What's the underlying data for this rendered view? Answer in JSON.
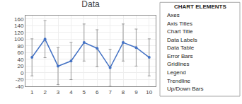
{
  "chart_data": {
    "type": "line",
    "title": "Data",
    "x": [
      1,
      2,
      3,
      4,
      5,
      6,
      7,
      8,
      9,
      10
    ],
    "values": [
      46,
      100,
      20,
      35,
      90,
      73,
      15,
      90,
      75,
      46
    ],
    "error": [
      55,
      55,
      55,
      55,
      55,
      55,
      55,
      55,
      55,
      55
    ],
    "color": "#4472c4",
    "error_color": "#999999",
    "marker": "circle",
    "xlim": [
      0.5,
      10.5
    ],
    "xticks": [
      1,
      2,
      3,
      4,
      5,
      6,
      7,
      8,
      9,
      10
    ],
    "ylim": [
      -40,
      170
    ],
    "yticks": [
      -40,
      -20,
      0,
      20,
      40,
      60,
      80,
      100,
      120,
      140,
      160
    ],
    "grid": true,
    "annotations": [
      "CHART ELEMENTS",
      "Axes",
      "Axis Titles",
      "Chart Title",
      "Data Labels",
      "Data Table",
      "Error Bars",
      "Gridlines",
      "Legend",
      "Trendline",
      "Up/Down Bars"
    ]
  }
}
